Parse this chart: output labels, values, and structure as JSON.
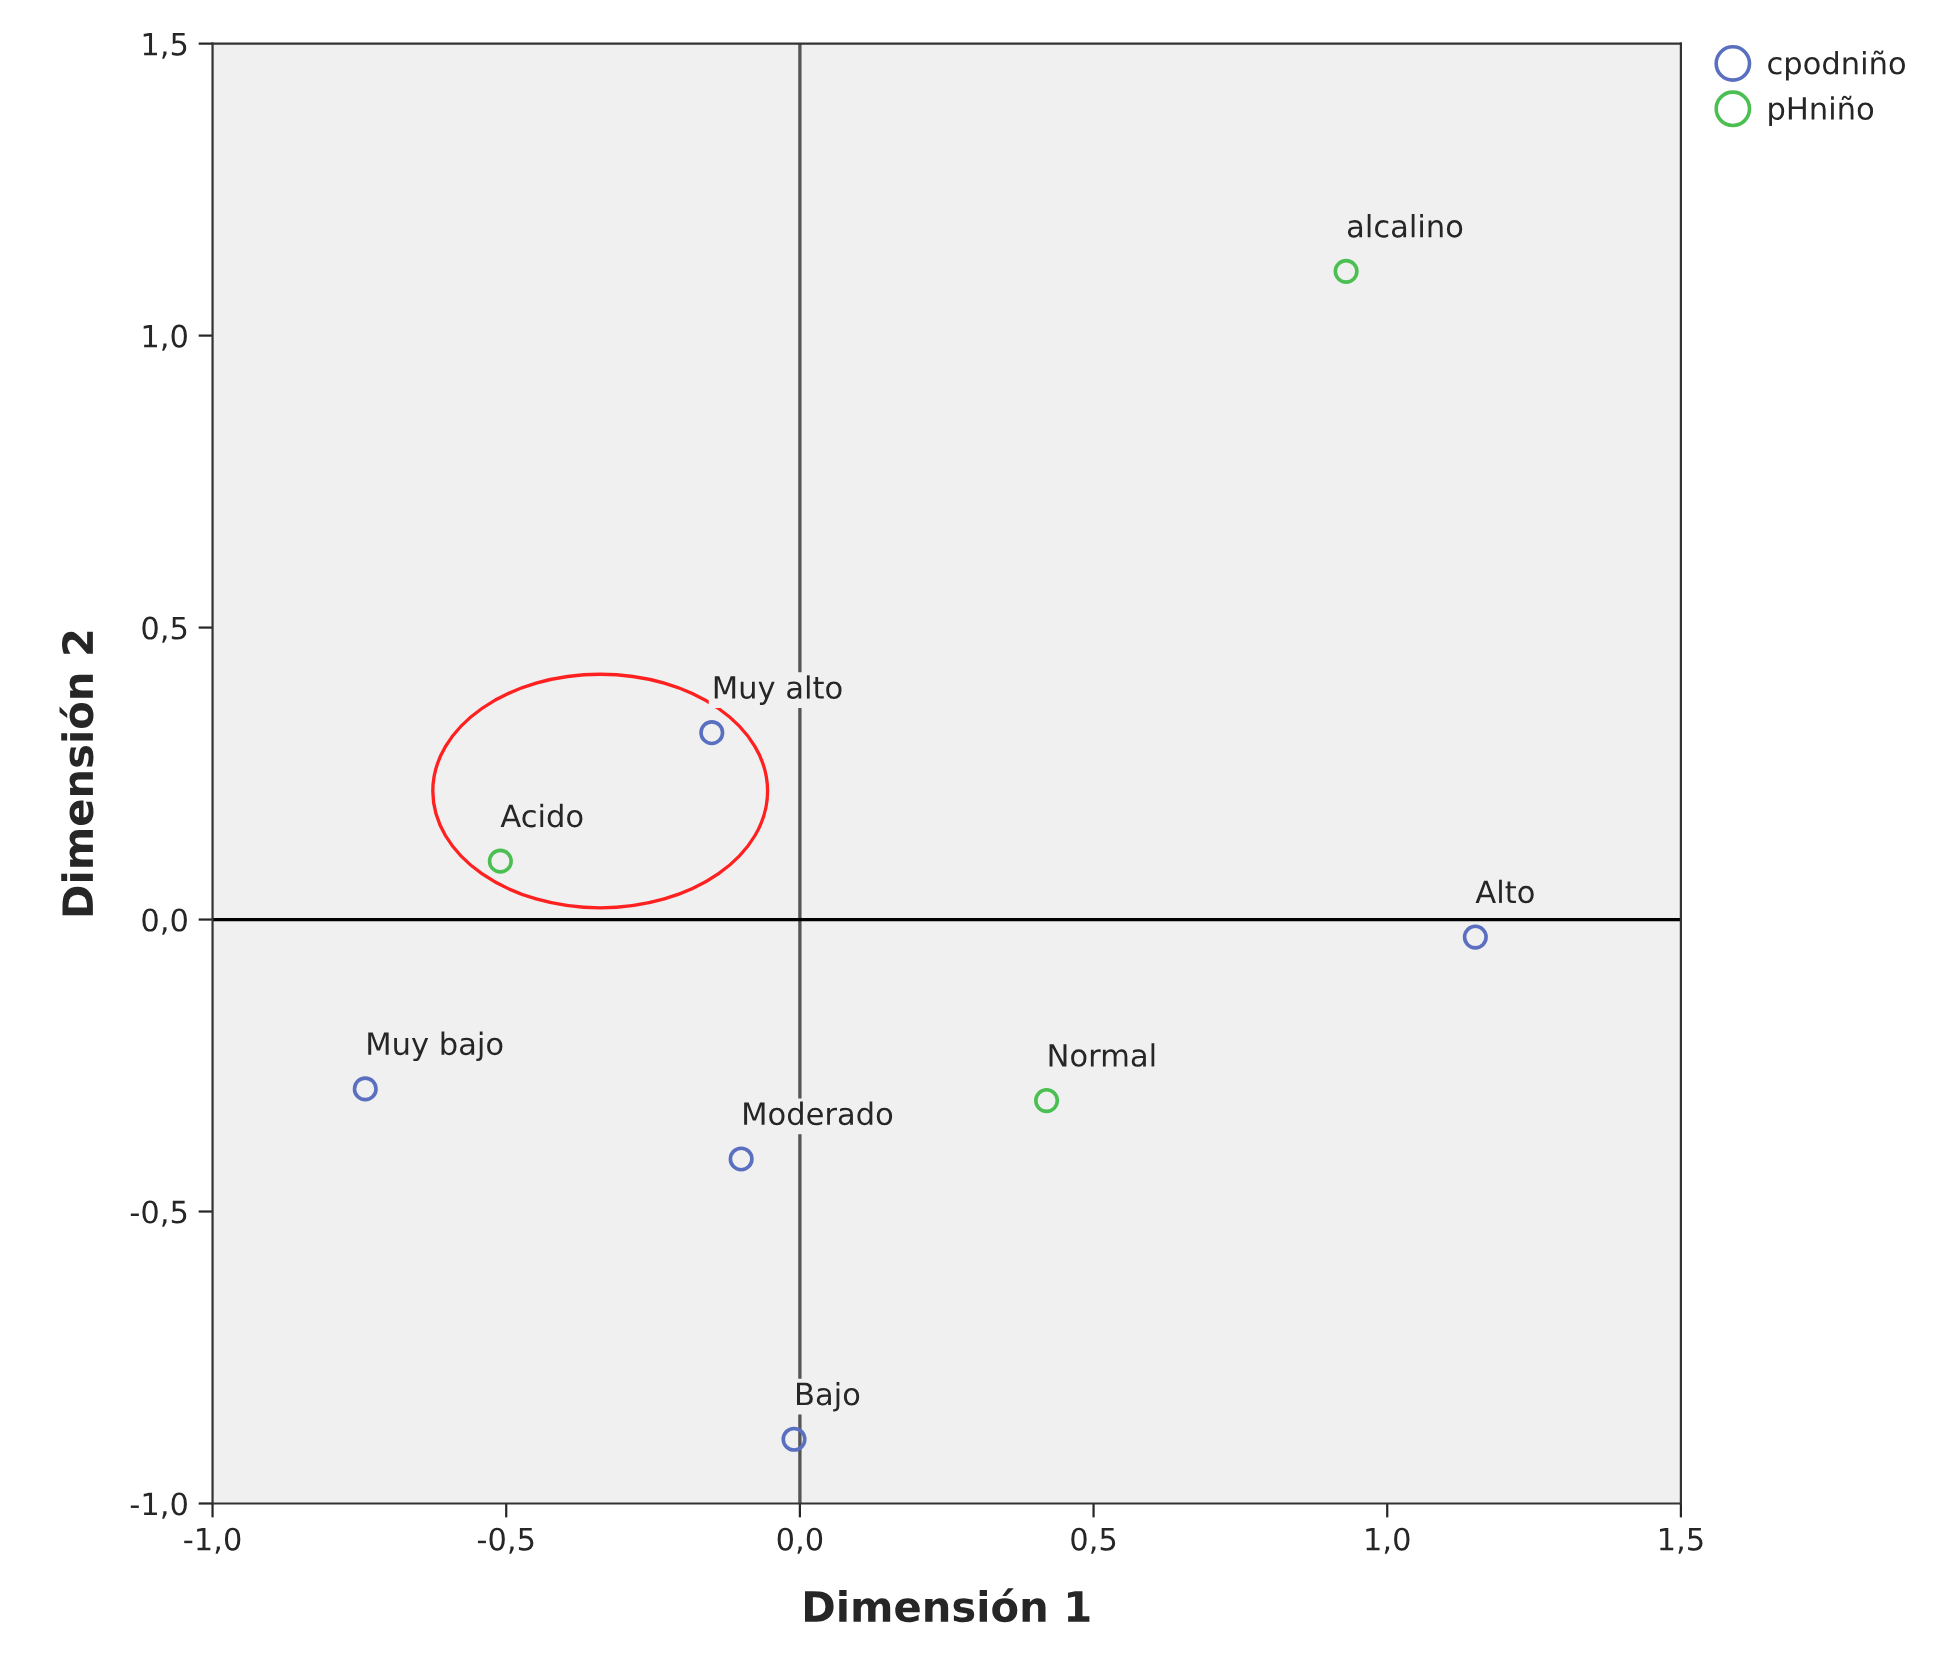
{
  "chart_data": {
    "type": "scatter",
    "xlabel": "Dimensión 1",
    "ylabel": "Dimensión 2",
    "xlim": [
      -1.0,
      1.5
    ],
    "ylim": [
      -1.0,
      1.5
    ],
    "xticks": [
      {
        "value": -1.0,
        "label": "-1,0"
      },
      {
        "value": -0.5,
        "label": "-0,5"
      },
      {
        "value": 0.0,
        "label": "0,0"
      },
      {
        "value": 0.5,
        "label": "0,5"
      },
      {
        "value": 1.0,
        "label": "1,0"
      },
      {
        "value": 1.5,
        "label": "1,5"
      }
    ],
    "yticks": [
      {
        "value": -1.0,
        "label": "-1,0"
      },
      {
        "value": -0.5,
        "label": "-0,5"
      },
      {
        "value": 0.0,
        "label": "0,0"
      },
      {
        "value": 0.5,
        "label": "0,5"
      },
      {
        "value": 1.0,
        "label": "1,0"
      },
      {
        "value": 1.5,
        "label": "1,5"
      }
    ],
    "series": [
      {
        "name": "cpodniño",
        "color": "#5a6fc0",
        "x": [
          -0.15,
          1.15,
          -0.74,
          -0.1,
          -0.01
        ],
        "values": [
          0.32,
          -0.03,
          -0.29,
          -0.41,
          -0.89
        ]
      },
      {
        "name": "pHniño",
        "color": "#4cbf52",
        "x": [
          0.93,
          -0.51,
          0.42
        ],
        "values": [
          1.11,
          0.1,
          -0.31
        ]
      }
    ],
    "annotations": [
      {
        "text": "Muy alto",
        "x": -0.15,
        "y": 0.32
      },
      {
        "text": "Alto",
        "x": 1.15,
        "y": -0.03
      },
      {
        "text": "Muy bajo",
        "x": -0.74,
        "y": -0.29
      },
      {
        "text": "Moderado",
        "x": -0.1,
        "y": -0.41
      },
      {
        "text": "Bajo",
        "x": -0.01,
        "y": -0.89
      },
      {
        "text": "alcalino",
        "x": 0.93,
        "y": 1.11
      },
      {
        "text": "Acido",
        "x": -0.51,
        "y": 0.1
      },
      {
        "text": "Normal",
        "x": 0.42,
        "y": -0.31
      }
    ],
    "ref_lines": [
      {
        "axis": "x",
        "value": 0.0,
        "color": "#555555"
      },
      {
        "axis": "y",
        "value": 0.0,
        "color": "#000000"
      }
    ],
    "marker": "circle",
    "grid": false,
    "legend": "top right"
  }
}
